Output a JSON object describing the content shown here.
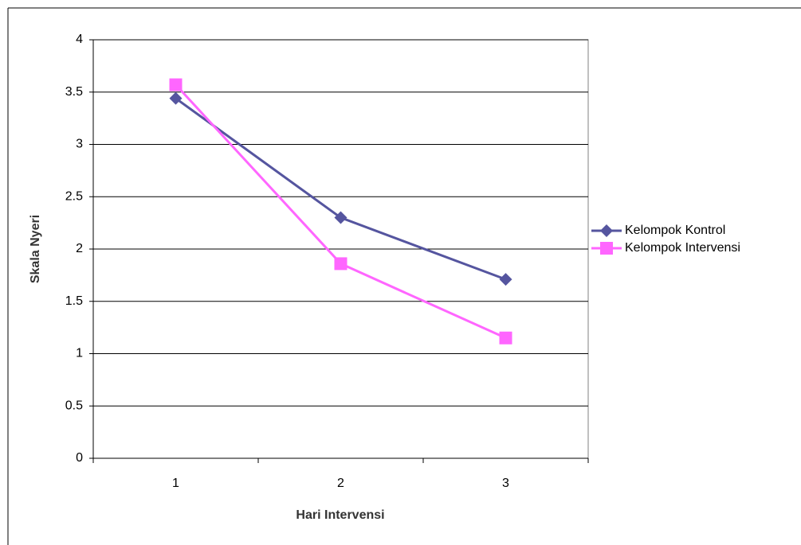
{
  "chart_data": {
    "type": "line",
    "x_label": "Hari Intervensi",
    "y_label": "Skala Nyeri",
    "categories": [
      "1",
      "2",
      "3"
    ],
    "series": [
      {
        "name": "Kelompok Kontrol",
        "color": "#55559f",
        "marker": "diamond",
        "values": [
          3.44,
          2.3,
          1.71
        ]
      },
      {
        "name": "Kelompok Intervensi",
        "color": "#ff66ff",
        "marker": "square",
        "values": [
          3.57,
          1.86,
          1.15
        ]
      }
    ],
    "ylim": [
      0,
      4
    ],
    "yticks": [
      0,
      0.5,
      1,
      1.5,
      2,
      2.5,
      3,
      3.5,
      4
    ],
    "grid": true,
    "legend": "right"
  }
}
